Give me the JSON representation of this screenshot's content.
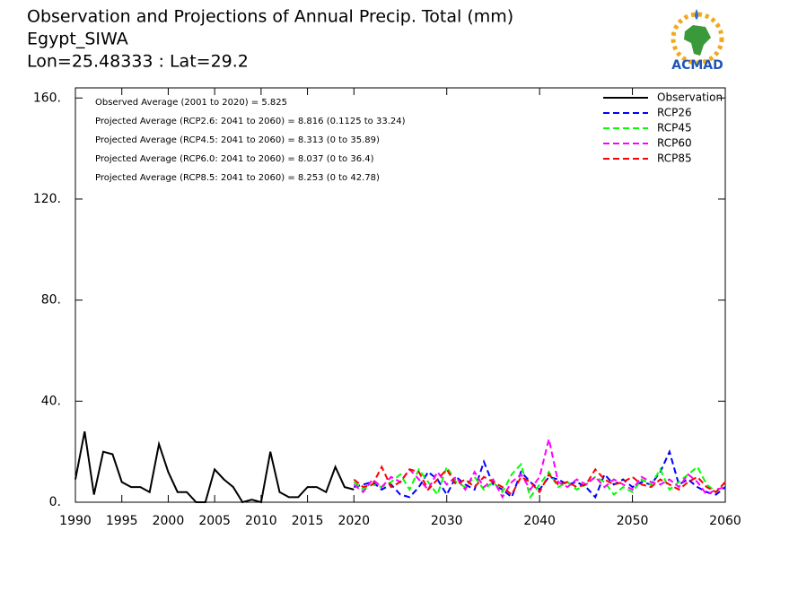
{
  "chart_data": {
    "type": "line",
    "title": "Observation and Projections of Annual Precip. Total (mm)",
    "subtitle": "Egypt_SIWA",
    "location": "Lon=25.48333 : Lat=29.2",
    "logo_text": "ACMAD",
    "annotations": [
      "Observed Average (2001 to 2020) = 5.825",
      "Projected Average (RCP2.6: 2041 to 2060) = 8.816 (0.1125 to 33.24)",
      "Projected Average (RCP4.5: 2041 to 2060) = 8.313 (0 to 35.89)",
      "Projected Average (RCP6.0: 2041 to 2060) = 8.037 (0 to 36.4)",
      "Projected Average (RCP8.5: 2041 to 2060) = 8.253 (0 to 42.78)"
    ],
    "xlim": [
      1990,
      2060
    ],
    "xticks": [
      1990,
      1995,
      2000,
      2005,
      2010,
      2015,
      2020,
      2030,
      2040,
      2050,
      2060
    ],
    "ylim": [
      0,
      164
    ],
    "yticks": [
      {
        "value": 0,
        "label": "0."
      },
      {
        "value": 40,
        "label": "40."
      },
      {
        "value": 80,
        "label": "80."
      },
      {
        "value": 120,
        "label": "120."
      },
      {
        "value": 160,
        "label": "160."
      }
    ],
    "legend": "upper right",
    "series": [
      {
        "name": "Observation",
        "color": "#000000",
        "dashed": false,
        "x": [
          1990,
          1991,
          1992,
          1993,
          1994,
          1995,
          1996,
          1997,
          1998,
          1999,
          2000,
          2001,
          2002,
          2003,
          2004,
          2005,
          2006,
          2007,
          2008,
          2009,
          2010,
          2011,
          2012,
          2013,
          2014,
          2015,
          2016,
          2017,
          2018,
          2019,
          2020
        ],
        "values": [
          9,
          28,
          3,
          20,
          19,
          8,
          6,
          6,
          4,
          23,
          12,
          4,
          4,
          0,
          0,
          13,
          9,
          6,
          0,
          1,
          0,
          20,
          4,
          2,
          2,
          6,
          6,
          4,
          14,
          6,
          5
        ]
      },
      {
        "name": "RCP26",
        "color": "#0000ff",
        "dashed": true,
        "x": [
          2020,
          2021,
          2022,
          2023,
          2024,
          2025,
          2026,
          2027,
          2028,
          2029,
          2030,
          2031,
          2032,
          2033,
          2034,
          2035,
          2036,
          2037,
          2038,
          2039,
          2040,
          2041,
          2042,
          2043,
          2044,
          2045,
          2046,
          2047,
          2048,
          2049,
          2050,
          2051,
          2052,
          2053,
          2054,
          2055,
          2056,
          2057,
          2058,
          2059,
          2060
        ],
        "values": [
          6,
          7,
          8,
          5,
          7,
          3,
          2,
          6,
          12,
          9,
          3,
          10,
          7,
          5,
          16,
          7,
          5,
          2,
          12,
          8,
          5,
          10,
          9,
          7,
          8,
          6,
          2,
          11,
          7,
          9,
          6,
          8,
          7,
          12,
          20,
          7,
          9,
          6,
          4,
          3,
          6
        ]
      },
      {
        "name": "RCP45",
        "color": "#00ff00",
        "dashed": true,
        "x": [
          2020,
          2021,
          2022,
          2023,
          2024,
          2025,
          2026,
          2027,
          2028,
          2029,
          2030,
          2031,
          2032,
          2033,
          2034,
          2035,
          2036,
          2037,
          2038,
          2039,
          2040,
          2041,
          2042,
          2043,
          2044,
          2045,
          2046,
          2047,
          2048,
          2049,
          2050,
          2051,
          2052,
          2053,
          2054,
          2055,
          2056,
          2057,
          2058,
          2059,
          2060
        ],
        "values": [
          8,
          5,
          7,
          6,
          8,
          11,
          5,
          13,
          8,
          3,
          14,
          8,
          6,
          10,
          5,
          8,
          4,
          11,
          15,
          2,
          7,
          12,
          6,
          8,
          5,
          7,
          10,
          8,
          3,
          6,
          4,
          9,
          7,
          13,
          5,
          8,
          11,
          14,
          7,
          4,
          8
        ]
      },
      {
        "name": "RCP60",
        "color": "#ff00ff",
        "dashed": true,
        "x": [
          2020,
          2021,
          2022,
          2023,
          2024,
          2025,
          2026,
          2027,
          2028,
          2029,
          2030,
          2031,
          2032,
          2033,
          2034,
          2035,
          2036,
          2037,
          2038,
          2039,
          2040,
          2041,
          2042,
          2043,
          2044,
          2045,
          2046,
          2047,
          2048,
          2049,
          2050,
          2051,
          2052,
          2053,
          2054,
          2055,
          2056,
          2057,
          2058,
          2059,
          2060
        ],
        "values": [
          7,
          4,
          9,
          6,
          10,
          8,
          13,
          9,
          5,
          12,
          7,
          10,
          5,
          12,
          6,
          9,
          2,
          8,
          11,
          5,
          10,
          25,
          8,
          6,
          9,
          7,
          10,
          6,
          9,
          7,
          5,
          10,
          8,
          7,
          9,
          6,
          11,
          8,
          3,
          5,
          6
        ]
      },
      {
        "name": "RCP85",
        "color": "#ff0000",
        "dashed": true,
        "x": [
          2020,
          2021,
          2022,
          2023,
          2024,
          2025,
          2026,
          2027,
          2028,
          2029,
          2030,
          2031,
          2032,
          2033,
          2034,
          2035,
          2036,
          2037,
          2038,
          2039,
          2040,
          2041,
          2042,
          2043,
          2044,
          2045,
          2046,
          2047,
          2048,
          2049,
          2050,
          2051,
          2052,
          2053,
          2054,
          2055,
          2056,
          2057,
          2058,
          2059,
          2060
        ],
        "values": [
          9,
          6,
          7,
          14,
          6,
          8,
          13,
          12,
          5,
          9,
          13,
          7,
          9,
          6,
          10,
          8,
          6,
          3,
          10,
          8,
          4,
          11,
          7,
          8,
          6,
          7,
          13,
          9,
          7,
          8,
          10,
          7,
          6,
          9,
          7,
          5,
          8,
          10,
          6,
          4,
          8
        ]
      }
    ]
  }
}
